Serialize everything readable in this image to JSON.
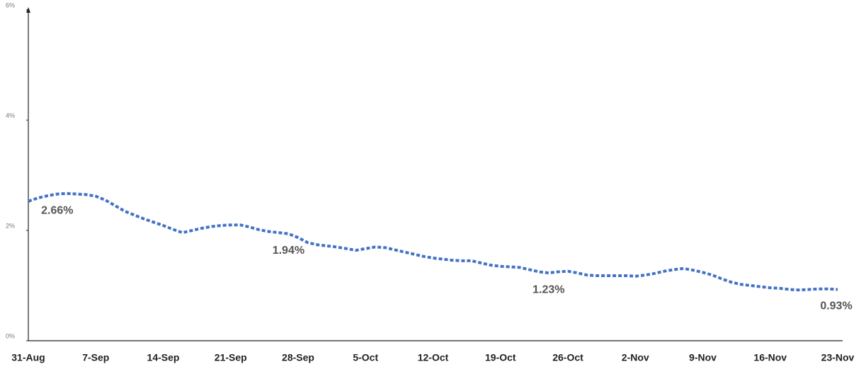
{
  "chart_data": {
    "type": "line",
    "categories": [
      "31-Aug",
      null,
      null,
      null,
      null,
      null,
      null,
      "7-Sep",
      null,
      null,
      null,
      null,
      null,
      null,
      "14-Sep",
      null,
      null,
      null,
      null,
      null,
      null,
      "21-Sep",
      null,
      null,
      null,
      null,
      null,
      null,
      "28-Sep",
      null,
      null,
      null,
      null,
      null,
      null,
      "5-Oct",
      null,
      null,
      null,
      null,
      null,
      null,
      "12-Oct",
      null,
      null,
      null,
      null,
      null,
      null,
      "19-Oct",
      null,
      null,
      null,
      null,
      null,
      null,
      "26-Oct",
      null,
      null,
      null,
      null,
      null,
      null,
      "2-Nov",
      null,
      null,
      null,
      null,
      null,
      null,
      "9-Nov",
      null,
      null,
      null,
      null,
      null,
      null,
      "16-Nov",
      null,
      null,
      null,
      null,
      null,
      null,
      "23-Nov"
    ],
    "series": [
      {
        "color": "#4472c4",
        "values": [
          2.53,
          2.59,
          2.63,
          2.66,
          2.67,
          2.66,
          2.65,
          2.62,
          2.55,
          2.45,
          2.35,
          2.28,
          2.21,
          2.15,
          2.09,
          2.02,
          1.96,
          2.0,
          2.04,
          2.07,
          2.09,
          2.1,
          2.1,
          2.06,
          2.01,
          1.98,
          1.96,
          1.94,
          1.87,
          1.78,
          1.74,
          1.72,
          1.7,
          1.67,
          1.64,
          1.67,
          1.7,
          1.69,
          1.65,
          1.61,
          1.57,
          1.53,
          1.5,
          1.48,
          1.46,
          1.45,
          1.45,
          1.41,
          1.37,
          1.35,
          1.34,
          1.33,
          1.29,
          1.25,
          1.23,
          1.25,
          1.26,
          1.23,
          1.19,
          1.18,
          1.18,
          1.18,
          1.18,
          1.17,
          1.19,
          1.22,
          1.26,
          1.29,
          1.31,
          1.28,
          1.24,
          1.19,
          1.12,
          1.06,
          1.02,
          1.0,
          0.98,
          0.96,
          0.95,
          0.93,
          0.92,
          0.93,
          0.94,
          0.94,
          0.93
        ],
        "value_labels": [
          null,
          null,
          null,
          "2.66%",
          null,
          null,
          null,
          null,
          null,
          null,
          null,
          null,
          null,
          null,
          null,
          null,
          null,
          null,
          null,
          null,
          null,
          null,
          null,
          null,
          null,
          null,
          null,
          "1.94%",
          null,
          null,
          null,
          null,
          null,
          null,
          null,
          null,
          null,
          null,
          null,
          null,
          null,
          null,
          null,
          null,
          null,
          null,
          null,
          null,
          null,
          null,
          null,
          null,
          null,
          null,
          "1.23%",
          null,
          null,
          null,
          null,
          null,
          null,
          null,
          null,
          null,
          null,
          null,
          null,
          null,
          null,
          null,
          null,
          null,
          null,
          null,
          null,
          null,
          null,
          null,
          null,
          null,
          null,
          null,
          null,
          null,
          "0.93%"
        ]
      }
    ],
    "ylim": [
      0,
      6
    ],
    "yticks": [
      {
        "value": 0,
        "label": "0%"
      },
      {
        "value": 2,
        "label": "2%"
      },
      {
        "value": 4,
        "label": "4%"
      },
      {
        "value": 6,
        "label": "6%"
      }
    ]
  }
}
